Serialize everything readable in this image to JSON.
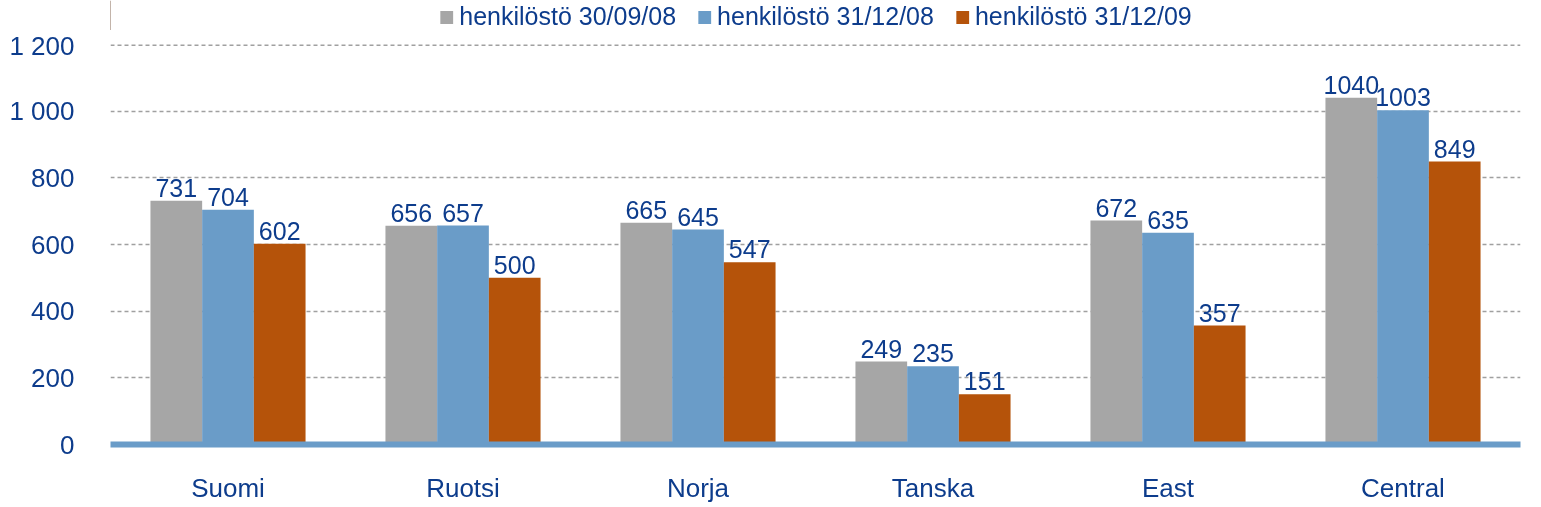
{
  "chart_data": {
    "type": "bar",
    "categories": [
      "Suomi",
      "Ruotsi",
      "Norja",
      "Tanska",
      "East",
      "Central"
    ],
    "series": [
      {
        "name": "henkilöstö 30/09/08",
        "color": "#a6a6a6",
        "values": [
          731,
          656,
          665,
          249,
          672,
          1040
        ]
      },
      {
        "name": "henkilöstö 31/12/08",
        "color": "#6a9cc8",
        "values": [
          704,
          657,
          645,
          235,
          635,
          1003
        ]
      },
      {
        "name": "henkilöstö 31/12/09",
        "color": "#b5530a",
        "values": [
          602,
          500,
          547,
          151,
          357,
          849
        ]
      }
    ],
    "ylim": [
      0,
      1200
    ],
    "yticks": [
      0,
      200,
      400,
      600,
      800,
      {
        "value": 1000,
        "label": "1 000"
      },
      {
        "value": 1200,
        "label": "1 200"
      }
    ],
    "grid": "y",
    "legend": "top",
    "data_labels": true
  }
}
